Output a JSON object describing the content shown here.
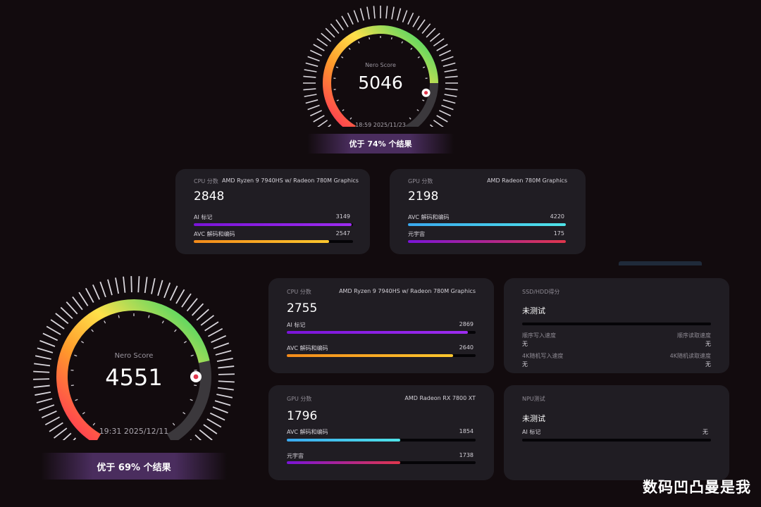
{
  "colors": {
    "background": "#120b0e",
    "card": "#201d23",
    "purple_bar": "#8a1ce0",
    "orange_bar": "#f4a51c",
    "cyan_bar": "#3fc0f0",
    "metaverse_bar": "#e0364c"
  },
  "top_result": {
    "score_label": "Nero Score",
    "score": "5046",
    "score_percent": 0.8,
    "timestamp": "18:59 2025/11/23",
    "rank_text": "优于 74% 个结果",
    "cpu": {
      "label": "CPU 分数",
      "model": "AMD Ryzen 9 7940HS w/ Radeon 780M Graphics",
      "score": "2848",
      "items": [
        {
          "label": "AI 标记",
          "value": "3149",
          "fill": 0.99
        },
        {
          "label": "AVC 解码和编码",
          "value": "2547",
          "fill": 0.85
        }
      ]
    },
    "gpu": {
      "label": "GPU 分数",
      "model": "AMD Radeon 780M Graphics",
      "score": "2198",
      "items": [
        {
          "label": "AVC 解码和编码",
          "value": "4220",
          "fill": 1.0
        },
        {
          "label": "元宇宙",
          "value": "175",
          "fill": 1.0
        }
      ]
    }
  },
  "bottom_result": {
    "score_label": "Nero Score",
    "score": "4551",
    "score_percent": 0.76,
    "timestamp": "19:31 2025/12/11",
    "rank_text": "优于 69% 个结果",
    "cpu": {
      "label": "CPU 分数",
      "model": "AMD Ryzen 9 7940HS w/ Radeon 780M Graphics",
      "score": "2755",
      "items": [
        {
          "label": "AI 标记",
          "value": "2869",
          "fill": 0.96
        },
        {
          "label": "AVC 解码和编码",
          "value": "2640",
          "fill": 0.88
        }
      ]
    },
    "gpu": {
      "label": "GPU 分数",
      "model": "AMD Radeon RX 7800 XT",
      "score": "1796",
      "items": [
        {
          "label": "AVC 解码和编码",
          "value": "1854",
          "fill": 0.6
        },
        {
          "label": "元宇宙",
          "value": "1738",
          "fill": 0.6
        }
      ]
    },
    "disk": {
      "label": "SSD/HDD得分",
      "status": "未测试",
      "items": [
        {
          "label": "顺序写入速度",
          "value": "无"
        },
        {
          "label": "顺序读取速度",
          "value": "无"
        },
        {
          "label": "4K随机写入速度",
          "value": "无"
        },
        {
          "label": "4K随机读取速度",
          "value": "无"
        }
      ]
    },
    "npu": {
      "label": "NPU测试",
      "status": "未测试",
      "items": [
        {
          "label": "AI 标记",
          "value": "无"
        }
      ]
    }
  },
  "watermark": "数码凹凸曼是我"
}
